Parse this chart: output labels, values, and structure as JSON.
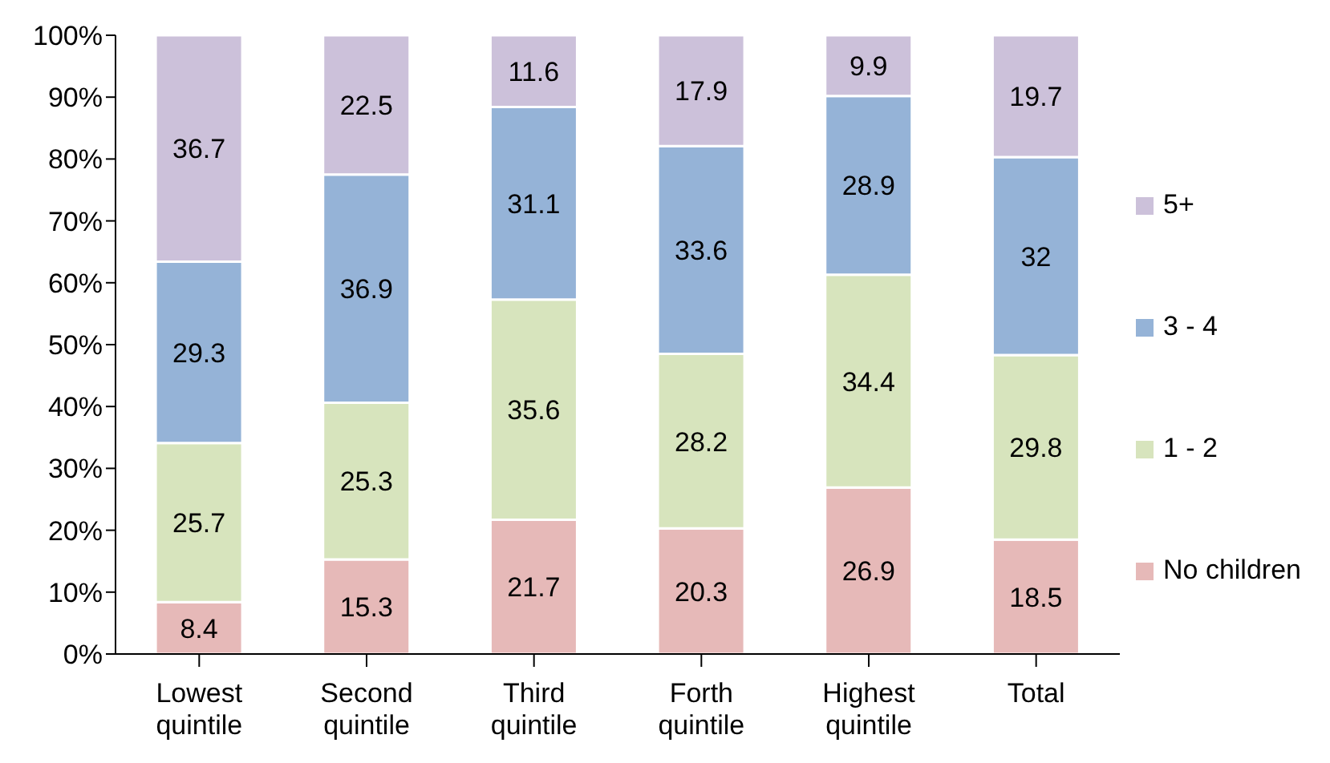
{
  "chart_data": {
    "type": "bar",
    "stacked": true,
    "categories": [
      "Lowest quintile",
      "Second quintile",
      "Third quintile",
      "Forth quintile",
      "Highest quintile",
      "Total"
    ],
    "series": [
      {
        "name": "No children",
        "color": "#e6b9b8",
        "values": [
          8.4,
          15.3,
          21.7,
          20.3,
          26.9,
          18.5
        ]
      },
      {
        "name": "1 - 2",
        "color": "#d7e4bd",
        "values": [
          25.7,
          25.3,
          35.6,
          28.2,
          34.4,
          29.8
        ]
      },
      {
        "name": "3 - 4",
        "color": "#95b3d7",
        "values": [
          29.3,
          36.9,
          31.1,
          33.6,
          28.9,
          32
        ]
      },
      {
        "name": "5+",
        "color": "#ccc1da",
        "values": [
          36.7,
          22.5,
          11.6,
          17.9,
          9.9,
          19.7
        ]
      }
    ],
    "ylim": [
      0,
      100
    ],
    "yticks": [
      {
        "value": 0,
        "label": "0%"
      },
      {
        "value": 10,
        "label": "10%"
      },
      {
        "value": 20,
        "label": "20%"
      },
      {
        "value": 30,
        "label": "30%"
      },
      {
        "value": 40,
        "label": "40%"
      },
      {
        "value": 50,
        "label": "50%"
      },
      {
        "value": 60,
        "label": "60%"
      },
      {
        "value": 70,
        "label": "70%"
      },
      {
        "value": 80,
        "label": "80%"
      },
      {
        "value": 90,
        "label": "90%"
      },
      {
        "value": 100,
        "label": "100%"
      }
    ],
    "data_labels": true,
    "grid": false,
    "legend": "right"
  }
}
